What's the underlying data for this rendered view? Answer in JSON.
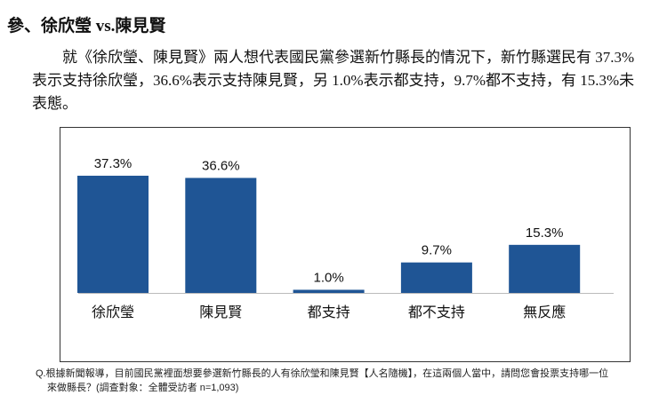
{
  "title": "參、徐欣瑩 vs.陳見賢",
  "paragraph": "就《徐欣瑩、陳見賢》兩人想代表國民黨參選新竹縣長的情況下，新竹縣選民有 37.3%表示支持徐欣瑩，36.6%表示支持陳見賢，另 1.0%表示都支持，9.7%都不支持，有 15.3%未表態。",
  "note": {
    "line1": "Q.根據新聞報導，目前國民黨裡面想要參選新竹縣長的人有徐欣瑩和陳見賢【人名隨機】，在這兩個人當中，請問您會投票支持哪一位",
    "line2": "來做縣長？(調查對象：全體受訪者 n=1,093)"
  },
  "chart_data": {
    "type": "bar",
    "categories": [
      "徐欣瑩",
      "陳見賢",
      "都支持",
      "都不支持",
      "無反應"
    ],
    "values": [
      37.3,
      36.6,
      1.0,
      9.7,
      15.3
    ],
    "labels": [
      "37.3%",
      "36.6%",
      "1.0%",
      "9.7%",
      "15.3%"
    ],
    "bar_color": "#1f5595",
    "ylim": [
      0,
      40
    ],
    "grid": false
  }
}
